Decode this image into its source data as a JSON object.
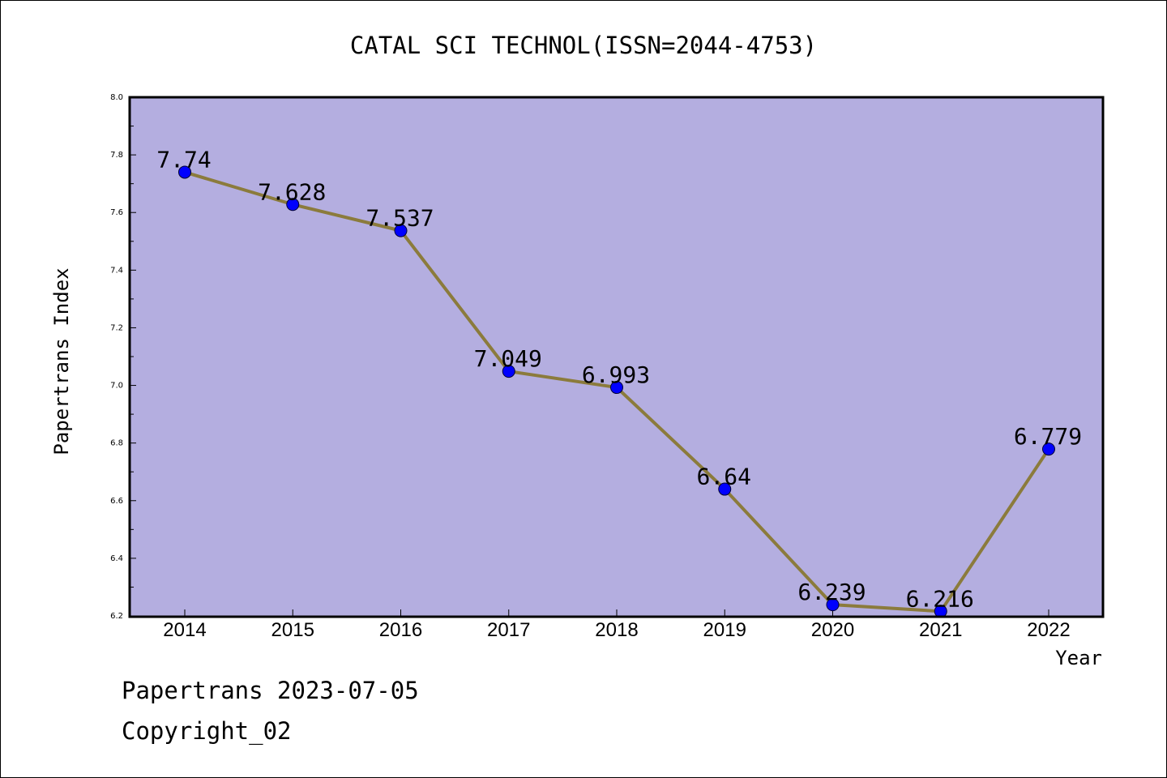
{
  "chart_data": {
    "type": "line",
    "title": "CATAL SCI TECHNOL(ISSN=2044-4753)",
    "xlabel": "Year",
    "ylabel": "Papertrans Index",
    "categories": [
      "2014",
      "2015",
      "2016",
      "2017",
      "2018",
      "2019",
      "2020",
      "2021",
      "2022"
    ],
    "series": [
      {
        "values": [
          7.74,
          7.628,
          7.537,
          7.049,
          6.993,
          6.64,
          6.239,
          6.216,
          6.779
        ]
      }
    ],
    "data_labels": [
      "7.74",
      "7.628",
      "7.537",
      "7.049",
      "6.993",
      "6.64",
      "6.239",
      "6.216",
      "6.779"
    ],
    "ylim": [
      6.2,
      8.0
    ],
    "yticks": [
      "6.2",
      "6.4",
      "6.6",
      "6.8",
      "7.0",
      "7.2",
      "7.4",
      "7.6",
      "7.8",
      "8.0"
    ],
    "grid": false,
    "colors": {
      "plot_background": "#b4aee0",
      "line": "#8b7b3c",
      "marker": "#0000ff"
    }
  },
  "footer": {
    "line1": "Papertrans 2023-07-05",
    "line2": "Copyright_02"
  }
}
